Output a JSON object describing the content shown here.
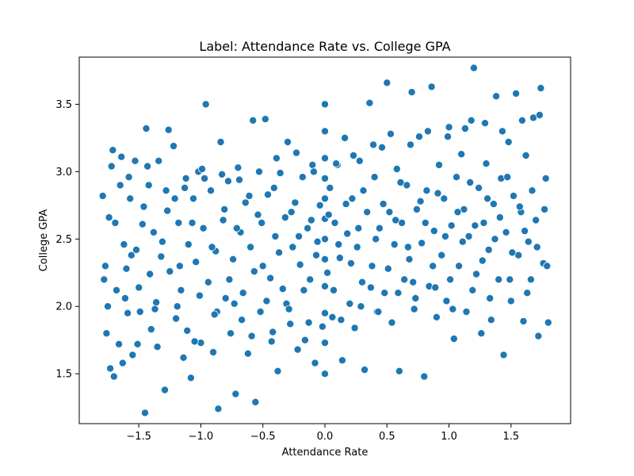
{
  "chart_data": {
    "type": "scatter",
    "title": "Label: Attendance Rate vs. College GPA",
    "xlabel": "Attendance Rate",
    "ylabel": "College GPA",
    "xlim": [
      -1.98,
      1.98
    ],
    "ylim": [
      1.13,
      3.85
    ],
    "xticks": [
      -1.5,
      -1.0,
      -0.5,
      0.0,
      0.5,
      1.0,
      1.5
    ],
    "xtick_labels": [
      "−1.5",
      "−1.0",
      "−0.5",
      "0.0",
      "0.5",
      "1.0",
      "1.5"
    ],
    "yticks": [
      1.5,
      2.0,
      2.5,
      3.0,
      3.5
    ],
    "ytick_labels": [
      "1.5",
      "2.0",
      "2.5",
      "3.0",
      "3.5"
    ],
    "grid": false,
    "marker_color": "#1f77b4",
    "marker_edge_color": "#ffffff",
    "series": [
      {
        "points": [
          [
            -1.79,
            2.82
          ],
          [
            -1.77,
            2.3
          ],
          [
            -1.75,
            2.0
          ],
          [
            -1.73,
            1.54
          ],
          [
            -1.71,
            3.16
          ],
          [
            -1.69,
            2.62
          ],
          [
            -1.68,
            2.12
          ],
          [
            -1.66,
            1.72
          ],
          [
            -1.64,
            3.11
          ],
          [
            -1.62,
            2.46
          ],
          [
            -1.6,
            2.28
          ],
          [
            -1.59,
            1.95
          ],
          [
            -1.57,
            2.8
          ],
          [
            -1.55,
            1.64
          ],
          [
            -1.53,
            3.08
          ],
          [
            -1.52,
            2.42
          ],
          [
            -1.5,
            2.14
          ],
          [
            -1.47,
            2.61
          ],
          [
            -1.45,
            1.21
          ],
          [
            -1.44,
            3.32
          ],
          [
            -1.42,
            2.9
          ],
          [
            -1.4,
            1.83
          ],
          [
            -1.38,
            2.55
          ],
          [
            -1.36,
            2.03
          ],
          [
            -1.34,
            3.08
          ],
          [
            -1.32,
            2.37
          ],
          [
            -1.29,
            1.38
          ],
          [
            -1.27,
            2.71
          ],
          [
            -1.25,
            2.26
          ],
          [
            -1.22,
            3.19
          ],
          [
            -1.2,
            1.91
          ],
          [
            -1.18,
            2.62
          ],
          [
            -1.16,
            2.12
          ],
          [
            -1.14,
            1.62
          ],
          [
            -1.12,
            2.95
          ],
          [
            -1.1,
            2.46
          ],
          [
            -1.08,
            1.47
          ],
          [
            -1.06,
            2.8
          ],
          [
            -1.04,
            2.33
          ],
          [
            -1.02,
            3.0
          ],
          [
            -1.0,
            1.73
          ],
          [
            -0.98,
            2.58
          ],
          [
            -0.96,
            3.5
          ],
          [
            -0.94,
            2.18
          ],
          [
            -0.92,
            2.86
          ],
          [
            -0.9,
            1.66
          ],
          [
            -0.88,
            2.41
          ],
          [
            -0.86,
            1.24
          ],
          [
            -0.84,
            3.22
          ],
          [
            -0.82,
            2.64
          ],
          [
            -0.8,
            2.06
          ],
          [
            -0.78,
            2.93
          ],
          [
            -0.76,
            1.8
          ],
          [
            -0.74,
            2.35
          ],
          [
            -0.72,
            1.35
          ],
          [
            -0.7,
            3.03
          ],
          [
            -0.68,
            2.55
          ],
          [
            -0.66,
            2.1
          ],
          [
            -0.64,
            2.77
          ],
          [
            -0.62,
            1.65
          ],
          [
            -0.6,
            2.44
          ],
          [
            -0.58,
            3.38
          ],
          [
            -0.56,
            1.29
          ],
          [
            -0.54,
            2.68
          ],
          [
            -0.52,
            1.96
          ],
          [
            -0.5,
            2.3
          ],
          [
            -0.48,
            3.39
          ],
          [
            -0.46,
            2.83
          ],
          [
            -0.44,
            2.21
          ],
          [
            -0.42,
            1.81
          ],
          [
            -0.4,
            2.52
          ],
          [
            -0.38,
            1.52
          ],
          [
            -0.36,
            2.99
          ],
          [
            -0.34,
            2.13
          ],
          [
            -0.32,
            2.66
          ],
          [
            -0.3,
            3.22
          ],
          [
            -0.28,
            1.87
          ],
          [
            -0.26,
            2.44
          ],
          [
            -0.24,
            2.77
          ],
          [
            -0.22,
            1.68
          ],
          [
            -0.2,
            2.31
          ],
          [
            -0.18,
            2.96
          ],
          [
            -0.16,
            1.75
          ],
          [
            -0.14,
            2.58
          ],
          [
            -0.12,
            2.2
          ],
          [
            -0.1,
            3.05
          ],
          [
            -0.08,
            1.58
          ],
          [
            -0.06,
            2.48
          ],
          [
            -0.04,
            2.75
          ],
          [
            -0.02,
            1.85
          ],
          [
            0.0,
            1.5
          ],
          [
            0.0,
            1.73
          ],
          [
            0.0,
            1.95
          ],
          [
            0.0,
            2.15
          ],
          [
            0.0,
            2.35
          ],
          [
            0.0,
            2.5
          ],
          [
            0.0,
            2.65
          ],
          [
            0.0,
            2.8
          ],
          [
            0.0,
            2.95
          ],
          [
            0.0,
            3.1
          ],
          [
            0.0,
            3.3
          ],
          [
            0.0,
            3.5
          ],
          [
            0.02,
            2.25
          ],
          [
            0.04,
            2.88
          ],
          [
            0.06,
            1.92
          ],
          [
            0.08,
            2.62
          ],
          [
            0.1,
            3.05
          ],
          [
            0.12,
            2.36
          ],
          [
            0.14,
            1.6
          ],
          [
            0.16,
            3.25
          ],
          [
            0.18,
            2.54
          ],
          [
            0.2,
            2.02
          ],
          [
            0.22,
            2.8
          ],
          [
            0.24,
            1.84
          ],
          [
            0.26,
            2.44
          ],
          [
            0.28,
            3.08
          ],
          [
            0.3,
            2.18
          ],
          [
            0.32,
            1.53
          ],
          [
            0.34,
            2.7
          ],
          [
            0.36,
            3.51
          ],
          [
            0.38,
            2.3
          ],
          [
            0.4,
            2.96
          ],
          [
            0.42,
            1.96
          ],
          [
            0.44,
            2.58
          ],
          [
            0.46,
            3.18
          ],
          [
            0.48,
            2.1
          ],
          [
            0.5,
            3.66
          ],
          [
            0.52,
            2.7
          ],
          [
            0.54,
            1.88
          ],
          [
            0.56,
            2.46
          ],
          [
            0.58,
            3.02
          ],
          [
            0.6,
            1.52
          ],
          [
            0.62,
            2.62
          ],
          [
            0.64,
            2.2
          ],
          [
            0.66,
            2.9
          ],
          [
            0.68,
            2.35
          ],
          [
            0.7,
            3.59
          ],
          [
            0.72,
            1.98
          ],
          [
            0.74,
            2.72
          ],
          [
            0.76,
            3.26
          ],
          [
            0.78,
            2.47
          ],
          [
            0.8,
            1.48
          ],
          [
            0.82,
            2.86
          ],
          [
            0.84,
            2.15
          ],
          [
            0.86,
            3.63
          ],
          [
            0.88,
            2.56
          ],
          [
            0.9,
            1.92
          ],
          [
            0.92,
            3.05
          ],
          [
            0.94,
            2.38
          ],
          [
            0.96,
            2.8
          ],
          [
            0.98,
            2.04
          ],
          [
            1.0,
            3.33
          ],
          [
            1.02,
            2.6
          ],
          [
            1.04,
            1.76
          ],
          [
            1.06,
            2.96
          ],
          [
            1.08,
            2.3
          ],
          [
            1.1,
            3.13
          ],
          [
            1.12,
            2.72
          ],
          [
            1.14,
            1.96
          ],
          [
            1.16,
            2.52
          ],
          [
            1.18,
            3.38
          ],
          [
            1.2,
            3.77
          ],
          [
            1.22,
            2.24
          ],
          [
            1.24,
            2.88
          ],
          [
            1.26,
            1.8
          ],
          [
            1.28,
            2.62
          ],
          [
            1.3,
            3.06
          ],
          [
            1.32,
            2.42
          ],
          [
            1.34,
            1.9
          ],
          [
            1.36,
            2.76
          ],
          [
            1.38,
            3.56
          ],
          [
            1.4,
            2.2
          ],
          [
            1.42,
            2.95
          ],
          [
            1.44,
            1.64
          ],
          [
            1.46,
            2.55
          ],
          [
            1.48,
            3.22
          ],
          [
            1.5,
            2.04
          ],
          [
            1.52,
            2.82
          ],
          [
            1.54,
            3.58
          ],
          [
            1.56,
            2.38
          ],
          [
            1.58,
            2.7
          ],
          [
            1.6,
            1.89
          ],
          [
            1.62,
            3.12
          ],
          [
            1.64,
            2.48
          ],
          [
            1.66,
            2.2
          ],
          [
            1.68,
            3.4
          ],
          [
            1.7,
            2.64
          ],
          [
            1.72,
            1.78
          ],
          [
            1.74,
            3.62
          ],
          [
            1.76,
            2.32
          ],
          [
            1.78,
            2.95
          ],
          [
            1.8,
            1.88
          ],
          [
            -1.78,
            2.2
          ],
          [
            -1.74,
            2.66
          ],
          [
            -1.7,
            1.48
          ],
          [
            -1.65,
            2.9
          ],
          [
            -1.61,
            2.06
          ],
          [
            -1.56,
            2.38
          ],
          [
            -1.51,
            1.72
          ],
          [
            -1.46,
            2.74
          ],
          [
            -1.41,
            2.24
          ],
          [
            -1.37,
            1.98
          ],
          [
            -1.31,
            2.48
          ],
          [
            -1.26,
            3.31
          ],
          [
            -1.21,
            2.8
          ],
          [
            -1.17,
            2.3
          ],
          [
            -1.11,
            1.82
          ],
          [
            -1.07,
            2.62
          ],
          [
            -1.01,
            2.08
          ],
          [
            -0.97,
            2.95
          ],
          [
            -0.91,
            2.44
          ],
          [
            -0.87,
            1.96
          ],
          [
            -0.81,
            2.72
          ],
          [
            -0.77,
            2.2
          ],
          [
            -0.71,
            2.58
          ],
          [
            -0.67,
            1.9
          ],
          [
            -0.61,
            2.82
          ],
          [
            -0.57,
            2.26
          ],
          [
            -0.51,
            2.62
          ],
          [
            -0.47,
            2.04
          ],
          [
            -0.41,
            2.88
          ],
          [
            -0.37,
            2.4
          ],
          [
            -0.31,
            2.02
          ],
          [
            -0.27,
            2.7
          ],
          [
            -0.21,
            2.52
          ],
          [
            -0.17,
            2.12
          ],
          [
            -0.11,
            2.64
          ],
          [
            -0.07,
            2.38
          ],
          [
            0.03,
            2.68
          ],
          [
            0.07,
            2.12
          ],
          [
            0.11,
            2.46
          ],
          [
            0.17,
            2.76
          ],
          [
            0.21,
            2.32
          ],
          [
            0.27,
            2.58
          ],
          [
            0.31,
            2.86
          ],
          [
            0.37,
            2.14
          ],
          [
            0.41,
            2.5
          ],
          [
            0.47,
            2.76
          ],
          [
            0.51,
            2.28
          ],
          [
            0.57,
            2.64
          ],
          [
            0.61,
            2.92
          ],
          [
            0.67,
            2.44
          ],
          [
            0.71,
            2.18
          ],
          [
            0.77,
            2.78
          ],
          [
            0.81,
            2.62
          ],
          [
            0.87,
            2.3
          ],
          [
            0.91,
            2.84
          ],
          [
            0.97,
            2.52
          ],
          [
            1.01,
            2.2
          ],
          [
            1.07,
            2.7
          ],
          [
            1.11,
            2.48
          ],
          [
            1.17,
            2.92
          ],
          [
            1.21,
            2.6
          ],
          [
            1.27,
            2.34
          ],
          [
            1.31,
            2.8
          ],
          [
            1.37,
            2.5
          ],
          [
            1.41,
            2.66
          ],
          [
            1.47,
            2.96
          ],
          [
            1.51,
            2.4
          ],
          [
            1.57,
            2.74
          ],
          [
            1.61,
            2.56
          ],
          [
            1.67,
            2.86
          ],
          [
            1.71,
            2.44
          ],
          [
            1.77,
            2.72
          ],
          [
            -1.76,
            1.8
          ],
          [
            -1.63,
            1.58
          ],
          [
            -1.49,
            1.96
          ],
          [
            -1.35,
            1.7
          ],
          [
            -1.19,
            2.0
          ],
          [
            -1.05,
            1.74
          ],
          [
            -0.89,
            1.94
          ],
          [
            -0.73,
            2.02
          ],
          [
            -0.59,
            1.78
          ],
          [
            -0.43,
            1.74
          ],
          [
            -0.29,
            1.98
          ],
          [
            -0.13,
            1.88
          ],
          [
            0.13,
            1.9
          ],
          [
            0.29,
            2.0
          ],
          [
            0.43,
            1.96
          ],
          [
            0.59,
            2.1
          ],
          [
            0.73,
            2.06
          ],
          [
            0.89,
            2.14
          ],
          [
            1.03,
            1.98
          ],
          [
            1.19,
            2.12
          ],
          [
            1.33,
            2.06
          ],
          [
            1.49,
            2.2
          ],
          [
            1.63,
            2.1
          ],
          [
            1.79,
            2.3
          ],
          [
            -1.72,
            3.04
          ],
          [
            -1.58,
            2.96
          ],
          [
            -1.43,
            3.04
          ],
          [
            -1.28,
            2.86
          ],
          [
            -1.13,
            2.88
          ],
          [
            -0.99,
            3.02
          ],
          [
            -0.83,
            2.98
          ],
          [
            -0.69,
            2.94
          ],
          [
            -0.53,
            3.0
          ],
          [
            -0.39,
            3.1
          ],
          [
            -0.23,
            3.14
          ],
          [
            -0.09,
            3.0
          ],
          [
            0.09,
            3.06
          ],
          [
            0.23,
            3.12
          ],
          [
            0.39,
            3.2
          ],
          [
            0.53,
            3.28
          ],
          [
            0.69,
            3.2
          ],
          [
            0.83,
            3.3
          ],
          [
            0.99,
            3.26
          ],
          [
            1.13,
            3.32
          ],
          [
            1.29,
            3.36
          ],
          [
            1.43,
            3.3
          ],
          [
            1.59,
            3.38
          ],
          [
            1.73,
            3.42
          ]
        ]
      }
    ]
  }
}
